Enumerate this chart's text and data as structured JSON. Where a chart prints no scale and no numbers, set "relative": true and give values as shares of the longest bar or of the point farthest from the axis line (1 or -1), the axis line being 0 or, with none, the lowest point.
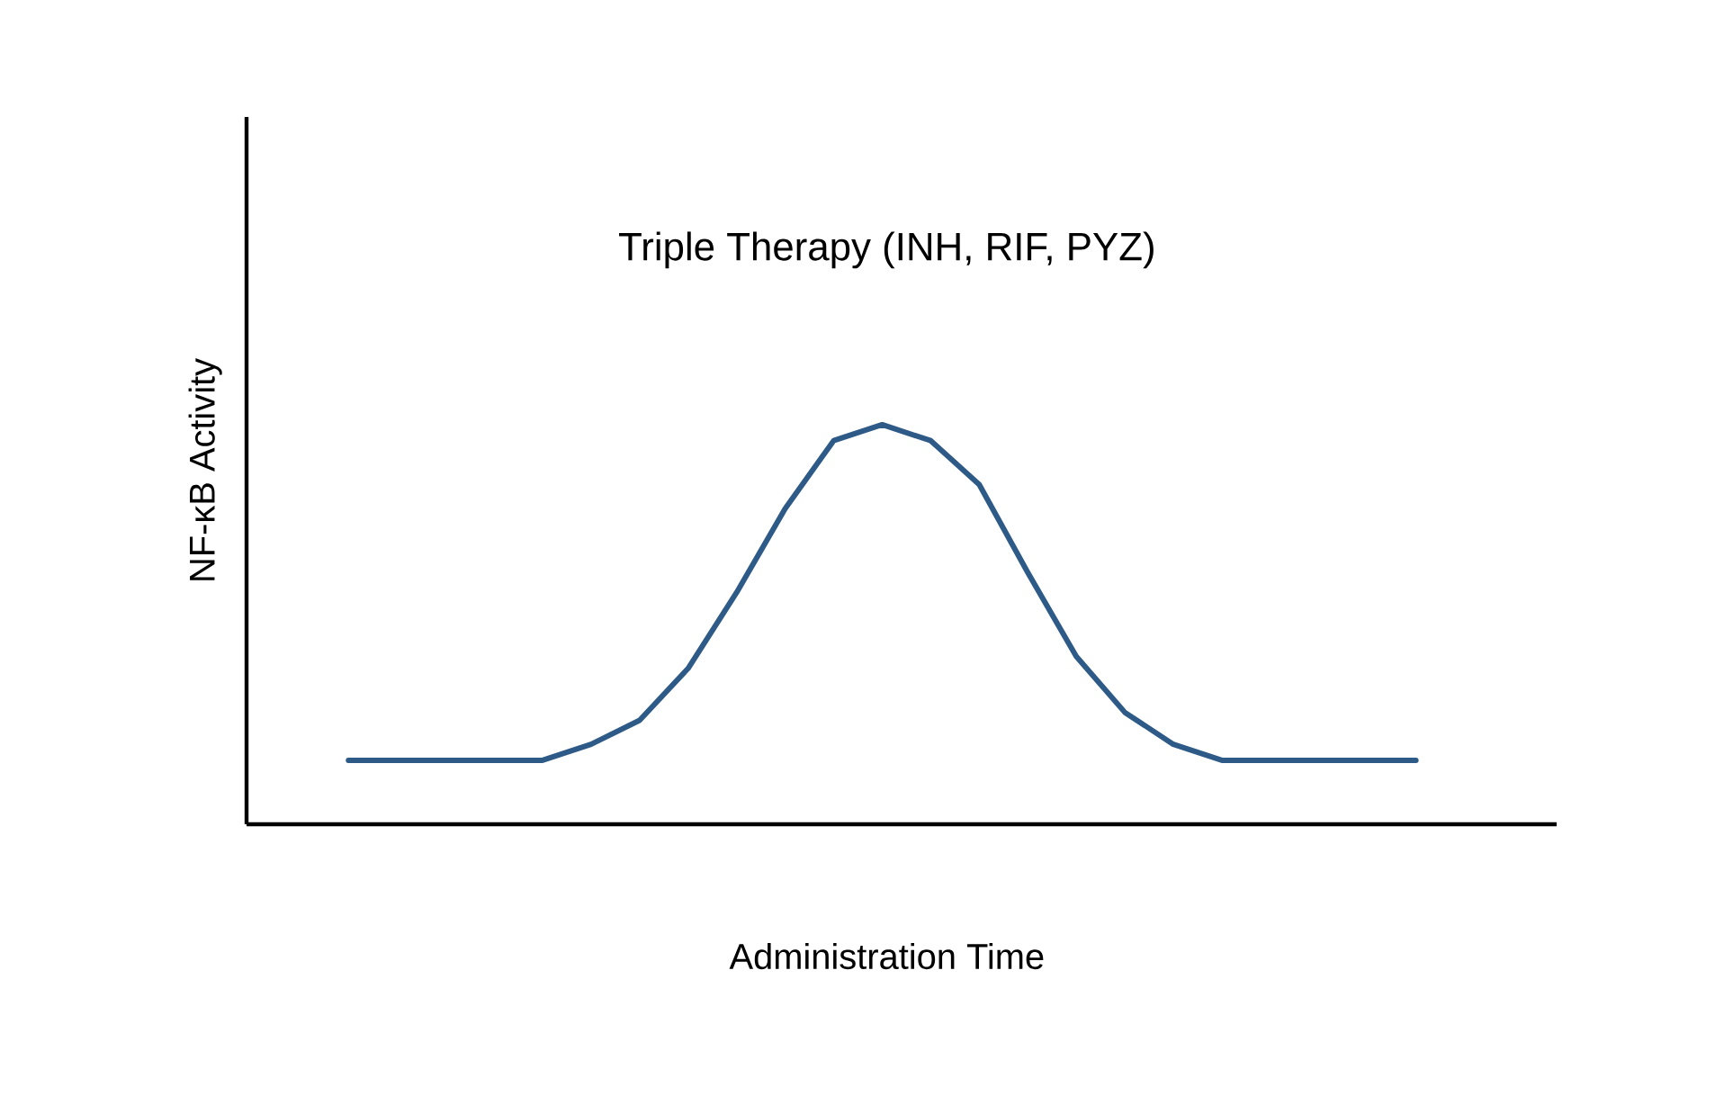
{
  "chart_data": {
    "type": "line",
    "title": "Triple Therapy (INH, RIF, PYZ)",
    "xlabel": "Administration Time",
    "ylabel": "NF-κB Activity",
    "relative": true,
    "categories": [
      null,
      null,
      null,
      null,
      null,
      null,
      null,
      null,
      null,
      null,
      null,
      null,
      null,
      null,
      null,
      null,
      null,
      null,
      null,
      null,
      null,
      null,
      null
    ],
    "series": [
      {
        "color": "#2e5a88",
        "values": [
          0.16,
          0.16,
          0.16,
          0.16,
          0.16,
          0.2,
          0.26,
          0.39,
          0.58,
          0.79,
          0.96,
          1.0,
          0.96,
          0.85,
          0.63,
          0.42,
          0.28,
          0.2,
          0.16,
          0.16,
          0.16,
          0.16,
          0.16
        ]
      }
    ],
    "marker": "none",
    "line_style": "solid"
  }
}
